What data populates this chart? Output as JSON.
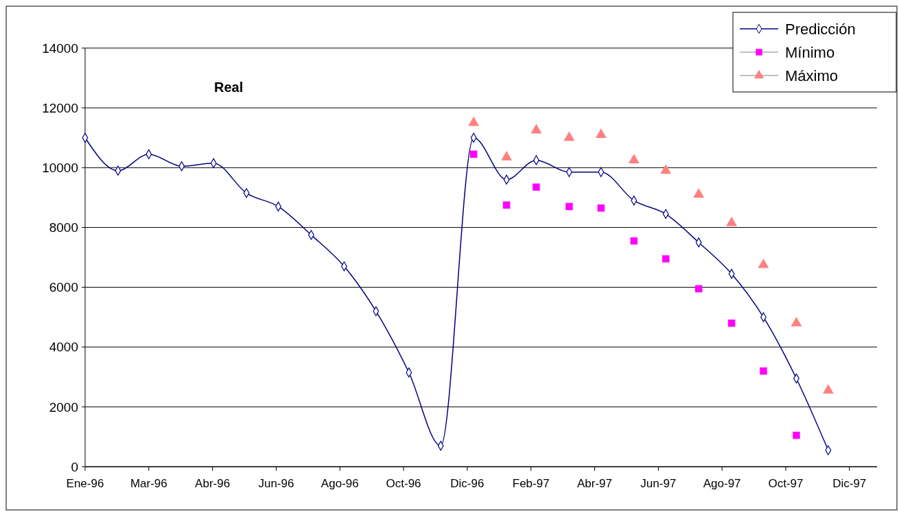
{
  "chart_data": {
    "type": "line",
    "annotations": [
      "Real"
    ],
    "x": [
      "1996-01-01",
      "1996-02-01",
      "1996-03-01",
      "1996-04-01",
      "1996-05-01",
      "1996-06-01",
      "1996-07-01",
      "1996-08-01",
      "1996-09-01",
      "1996-10-01",
      "1996-11-01",
      "1996-12-01",
      "1997-01-01",
      "1997-02-01",
      "1997-03-01",
      "1997-04-01",
      "1997-05-01",
      "1997-06-01",
      "1997-07-01",
      "1997-08-01",
      "1997-09-01",
      "1997-10-01",
      "1997-11-01",
      "1997-12-01"
    ],
    "series": [
      {
        "name": "Predicción",
        "color": "#000080",
        "marker": "diamond",
        "values": [
          11000,
          9900,
          10450,
          10050,
          10150,
          9150,
          8700,
          7750,
          6700,
          5200,
          3150,
          700,
          11000,
          9600,
          10250,
          9850,
          9850,
          8900,
          8450,
          7500,
          6450,
          5000,
          2950,
          550
        ]
      },
      {
        "name": "Mínimo",
        "type": "scatter",
        "color": "#ff00ff",
        "marker": "square",
        "values": [
          null,
          null,
          null,
          null,
          null,
          null,
          null,
          null,
          null,
          null,
          null,
          null,
          10450,
          8750,
          9350,
          8700,
          8650,
          7550,
          6950,
          5950,
          4800,
          3200,
          1050,
          null
        ]
      },
      {
        "name": "Máximo",
        "type": "scatter",
        "color": "#ff8080",
        "marker": "triangle",
        "values": [
          null,
          null,
          null,
          null,
          null,
          null,
          null,
          null,
          null,
          null,
          null,
          null,
          11500,
          10350,
          11250,
          11000,
          11100,
          10250,
          9900,
          9100,
          8150,
          6750,
          4800,
          2550
        ]
      }
    ],
    "xlim": [
      "1996-01-01",
      "1998-01-16"
    ],
    "xticks": [
      {
        "value": "1996-01-01",
        "label": "Ene-96"
      },
      {
        "value": "1996-03-01",
        "label": "Mar-96"
      },
      {
        "value": "1996-04-30",
        "label": "Abr-96"
      },
      {
        "value": "1996-06-29",
        "label": "Jun-96"
      },
      {
        "value": "1996-08-28",
        "label": "Ago-96"
      },
      {
        "value": "1996-10-27",
        "label": "Oct-96"
      },
      {
        "value": "1996-12-26",
        "label": "Dic-96"
      },
      {
        "value": "1997-02-24",
        "label": "Feb-97"
      },
      {
        "value": "1997-04-25",
        "label": "Abr-97"
      },
      {
        "value": "1997-06-24",
        "label": "Jun-97"
      },
      {
        "value": "1997-08-23",
        "label": "Ago-97"
      },
      {
        "value": "1997-10-22",
        "label": "Oct-97"
      },
      {
        "value": "1997-12-21",
        "label": "Dic-97"
      }
    ],
    "ylim": [
      0,
      14000
    ],
    "yticks": [
      0,
      2000,
      4000,
      6000,
      8000,
      10000,
      12000,
      14000
    ],
    "grid": "y",
    "legend": "top right"
  }
}
